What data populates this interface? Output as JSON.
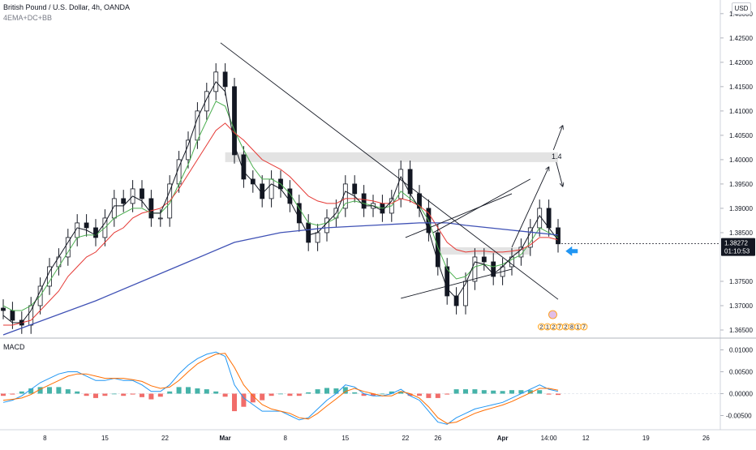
{
  "header": {
    "title": "British Pound / U.S. Dollar, 4h, OANDA",
    "indicators": "4EMA+DC+BB",
    "currency_button": "USD"
  },
  "price_axis": {
    "ticks": [
      "1.43000",
      "1.42500",
      "1.42000",
      "1.41500",
      "1.41000",
      "1.40500",
      "1.40000",
      "1.39500",
      "1.39000",
      "1.38500",
      "1.37500",
      "1.37000",
      "1.36500"
    ],
    "last_price": "1.38272",
    "countdown": "01:10:53"
  },
  "macd": {
    "label": "MACD",
    "ticks": [
      "0.01000",
      "0.00500",
      "0.00000",
      "-0.00500"
    ]
  },
  "time_axis": {
    "ticks": [
      "8",
      "15",
      "22",
      "Mar",
      "8",
      "15",
      "22",
      "26",
      "Apr",
      "14:00",
      "12",
      "19",
      "26"
    ]
  },
  "annotations": {
    "level_label": "1.4",
    "event_counts": [
      "2",
      "1",
      "2",
      "7",
      "2",
      "8",
      "1",
      "7"
    ]
  },
  "colors": {
    "candle": "#131722",
    "ema_fast": "#131722",
    "ema_green": "#4caf50",
    "ema_red": "#e53935",
    "ema_blue": "#3f51b5",
    "macd_line": "#2196f3",
    "signal_line": "#ff6d00",
    "hist_up": "#26a69a",
    "hist_down": "#ef5350",
    "arrow_marker": "#2196f3",
    "zone": "#d9d9d9"
  },
  "chart_data": {
    "type": "candlestick",
    "price_ylim": [
      1.3635,
      1.4328
    ],
    "macd_ylim": [
      -0.0075,
      0.0125
    ],
    "close_series": [
      1.369,
      1.367,
      1.366,
      1.37,
      1.374,
      1.378,
      1.38,
      1.384,
      1.387,
      1.386,
      1.384,
      1.388,
      1.392,
      1.391,
      1.394,
      1.392,
      1.388,
      1.388,
      1.395,
      1.4,
      1.404,
      1.41,
      1.414,
      1.418,
      1.415,
      1.401,
      1.396,
      1.395,
      1.392,
      1.396,
      1.394,
      1.391,
      1.387,
      1.383,
      1.385,
      1.388,
      1.39,
      1.395,
      1.393,
      1.39,
      1.391,
      1.389,
      1.392,
      1.398,
      1.393,
      1.39,
      1.385,
      1.378,
      1.372,
      1.37,
      1.375,
      1.38,
      1.379,
      1.376,
      1.378,
      1.38,
      1.382,
      1.386,
      1.39,
      1.386,
      1.3827
    ],
    "ema_fast": [
      1.368,
      1.3665,
      1.3665,
      1.369,
      1.373,
      1.377,
      1.38,
      1.383,
      1.386,
      1.3855,
      1.3845,
      1.387,
      1.3905,
      1.3905,
      1.3925,
      1.3915,
      1.389,
      1.389,
      1.3935,
      1.3985,
      1.403,
      1.4085,
      1.4125,
      1.416,
      1.414,
      1.403,
      1.3975,
      1.3955,
      1.393,
      1.395,
      1.394,
      1.3915,
      1.388,
      1.3845,
      1.385,
      1.387,
      1.389,
      1.3935,
      1.3925,
      1.3905,
      1.3905,
      1.3895,
      1.3915,
      1.3965,
      1.393,
      1.39,
      1.3855,
      1.379,
      1.3735,
      1.3715,
      1.3745,
      1.379,
      1.3785,
      1.3765,
      1.378,
      1.38,
      1.3815,
      1.385,
      1.3885,
      1.386,
      1.3835
    ],
    "ema_green": [
      1.37,
      1.369,
      1.369,
      1.37,
      1.372,
      1.375,
      1.378,
      1.381,
      1.384,
      1.3845,
      1.3845,
      1.386,
      1.388,
      1.389,
      1.39,
      1.39,
      1.389,
      1.389,
      1.391,
      1.395,
      1.399,
      1.404,
      1.408,
      1.412,
      1.411,
      1.406,
      1.402,
      1.3985,
      1.396,
      1.396,
      1.395,
      1.393,
      1.39,
      1.387,
      1.3865,
      1.387,
      1.388,
      1.391,
      1.3915,
      1.391,
      1.3905,
      1.39,
      1.3905,
      1.3935,
      1.392,
      1.3905,
      1.3875,
      1.382,
      1.3775,
      1.3755,
      1.376,
      1.378,
      1.3785,
      1.378,
      1.3785,
      1.3795,
      1.3805,
      1.383,
      1.386,
      1.385,
      1.384
    ],
    "ema_red": [
      1.366,
      1.366,
      1.3665,
      1.367,
      1.369,
      1.371,
      1.373,
      1.376,
      1.378,
      1.38,
      1.381,
      1.383,
      1.385,
      1.386,
      1.388,
      1.389,
      1.3895,
      1.39,
      1.3915,
      1.394,
      1.397,
      1.4,
      1.403,
      1.406,
      1.4075,
      1.4055,
      1.404,
      1.402,
      1.4,
      1.399,
      1.398,
      1.3965,
      1.3945,
      1.3925,
      1.3915,
      1.391,
      1.391,
      1.392,
      1.392,
      1.3918,
      1.3915,
      1.391,
      1.391,
      1.392,
      1.3915,
      1.3905,
      1.389,
      1.386,
      1.383,
      1.3815,
      1.381,
      1.3812,
      1.3812,
      1.381,
      1.381,
      1.3812,
      1.3815,
      1.3825,
      1.384,
      1.384,
      1.3835
    ],
    "ema_blue_points": [
      [
        0,
        1.364
      ],
      [
        10,
        1.371
      ],
      [
        20,
        1.379
      ],
      [
        25,
        1.383
      ],
      [
        30,
        1.385
      ],
      [
        35,
        1.386
      ],
      [
        40,
        1.3865
      ],
      [
        45,
        1.387
      ],
      [
        48,
        1.387
      ],
      [
        50,
        1.3865
      ],
      [
        55,
        1.3855
      ],
      [
        60,
        1.3845
      ]
    ],
    "zones": [
      {
        "from": 24,
        "to": 60,
        "low": 1.3995,
        "high": 1.4015
      },
      {
        "from": 47,
        "to": 57,
        "low": 1.3805,
        "high": 1.382
      }
    ],
    "trendlines": [
      [
        [
          23.5,
          1.424
        ],
        [
          60,
          1.3713
        ]
      ],
      [
        [
          43,
          1.3715
        ],
        [
          55,
          1.3775
        ]
      ],
      [
        [
          46.5,
          1.385
        ],
        [
          57,
          1.396
        ]
      ],
      [
        [
          43.5,
          1.384
        ],
        [
          55,
          1.393
        ]
      ]
    ],
    "projection_arrows": [
      [
        [
          55,
          1.382
        ],
        [
          59,
          1.3985
        ]
      ],
      [
        [
          59.5,
          1.402
        ],
        [
          60.5,
          1.407
        ]
      ],
      [
        [
          59.8,
          1.3995
        ],
        [
          60.5,
          1.3945
        ]
      ]
    ],
    "macd_line": [
      -0.002,
      -0.0015,
      -0.0005,
      0.001,
      0.0025,
      0.0035,
      0.0045,
      0.005,
      0.005,
      0.004,
      0.003,
      0.003,
      0.0035,
      0.003,
      0.003,
      0.002,
      0.0005,
      0.0005,
      0.002,
      0.0045,
      0.0065,
      0.008,
      0.009,
      0.0095,
      0.0085,
      0.002,
      -0.001,
      -0.0025,
      -0.004,
      -0.004,
      -0.004,
      -0.005,
      -0.006,
      -0.0055,
      -0.0035,
      -0.0015,
      0.0,
      0.002,
      0.0015,
      0.0,
      -0.0005,
      -0.0005,
      0.0,
      0.001,
      -0.0005,
      -0.0015,
      -0.004,
      -0.0065,
      -0.007,
      -0.0055,
      -0.0045,
      -0.0035,
      -0.003,
      -0.0025,
      -0.002,
      -0.001,
      0.0,
      0.001,
      0.002,
      0.001,
      0.0005
    ],
    "signal_line": [
      -0.0015,
      -0.0013,
      -0.001,
      -0.0002,
      0.001,
      0.002,
      0.003,
      0.004,
      0.0045,
      0.0045,
      0.004,
      0.0035,
      0.0035,
      0.0035,
      0.0032,
      0.0028,
      0.0018,
      0.0012,
      0.0015,
      0.003,
      0.005,
      0.0068,
      0.008,
      0.009,
      0.0092,
      0.006,
      0.002,
      -0.0005,
      -0.0025,
      -0.0035,
      -0.004,
      -0.0045,
      -0.0055,
      -0.0058,
      -0.0045,
      -0.0028,
      -0.0012,
      0.0005,
      0.0012,
      0.0005,
      0.0,
      -0.0005,
      -0.0005,
      0.0005,
      0.0,
      -0.001,
      -0.003,
      -0.0055,
      -0.0068,
      -0.0065,
      -0.0055,
      -0.0045,
      -0.0038,
      -0.0032,
      -0.0026,
      -0.0018,
      -0.0008,
      0.0002,
      0.0012,
      0.0012,
      0.0008
    ]
  }
}
